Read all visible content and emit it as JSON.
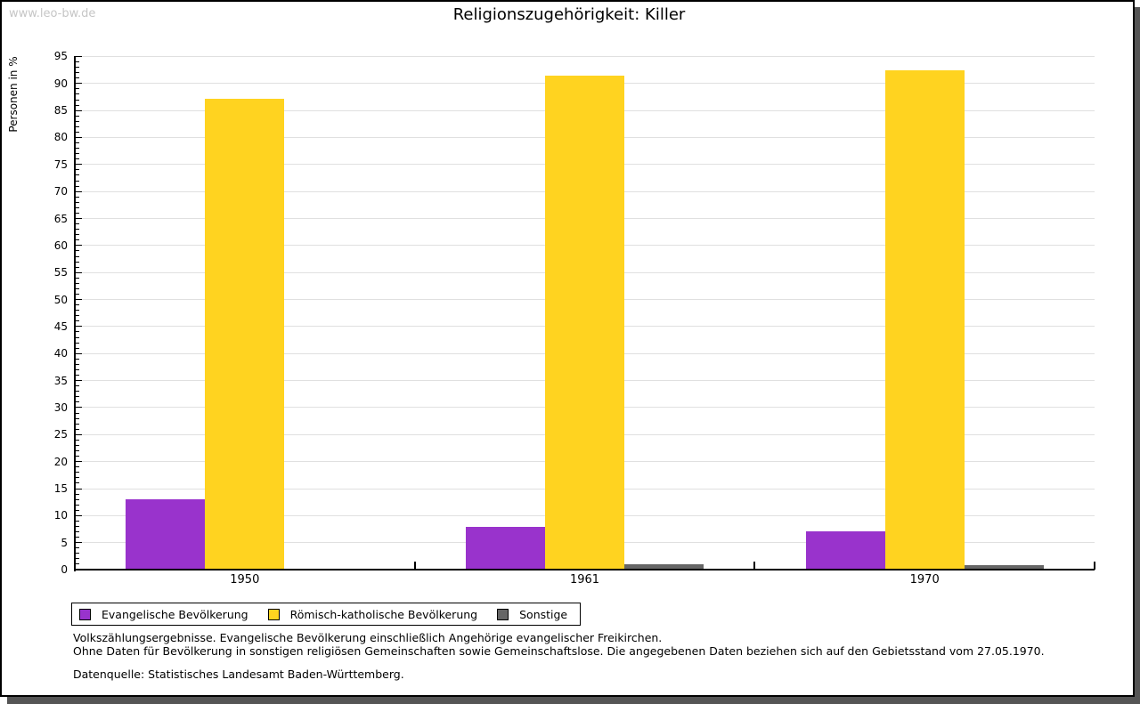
{
  "watermark": "www.leo-bw.de",
  "chart_data": {
    "type": "bar",
    "title": "Religionszugehörigkeit: Killer",
    "ylabel": "Personen in %",
    "ylim": [
      0,
      95
    ],
    "y_major_step": 5,
    "y_minor_step": 1,
    "grid": true,
    "legend_position": "bottom",
    "categories": [
      "1950",
      "1961",
      "1970"
    ],
    "series": [
      {
        "name": "Evangelische Bevölkerung",
        "color": "#9933cc",
        "values": [
          13.0,
          7.9,
          7.1
        ]
      },
      {
        "name": "Römisch-katholische Bevölkerung",
        "color": "#ffd320",
        "values": [
          87.1,
          91.4,
          92.4
        ]
      },
      {
        "name": "Sonstige",
        "color": "#666666",
        "values": [
          0.2,
          1.0,
          0.8
        ]
      }
    ]
  },
  "footnotes": {
    "line1": "Volkszählungsergebnisse. Evangelische Bevölkerung einschließlich Angehörige evangelischer Freikirchen.",
    "line2": "Ohne Daten für Bevölkerung in sonstigen religiösen Gemeinschaften sowie Gemeinschaftslose. Die angegebenen Daten beziehen sich auf den Gebietsstand vom 27.05.1970.",
    "source": "Datenquelle: Statistisches Landesamt Baden-Württemberg."
  }
}
